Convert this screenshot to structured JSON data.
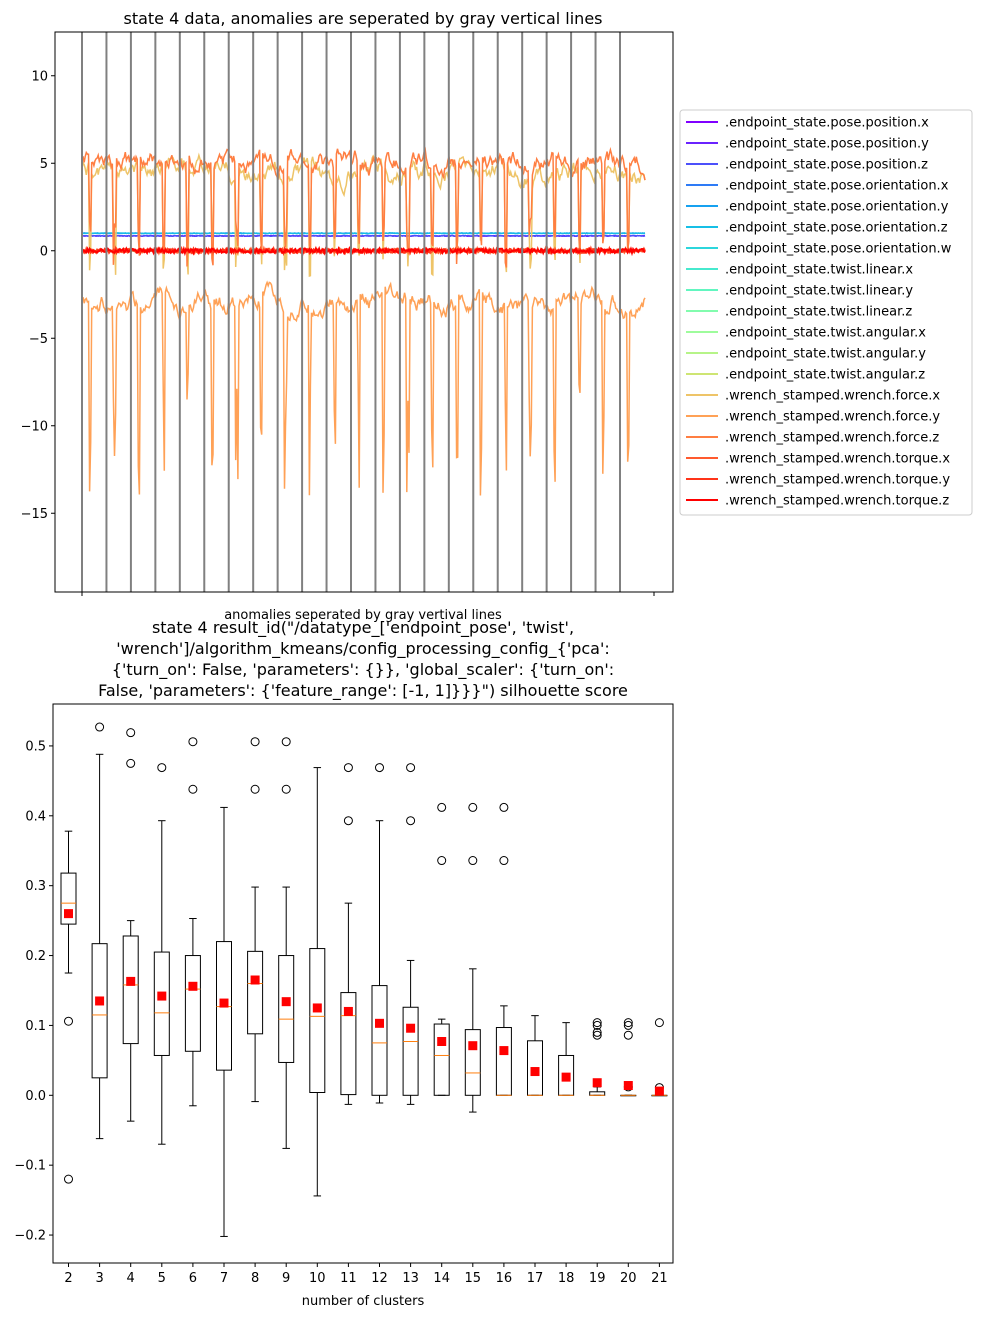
{
  "chart_data": [
    {
      "type": "line",
      "title": "state 4 data, anomalies are seperated by gray vertical lines",
      "xlabel": "anomalies seperated by gray vertival lines",
      "ylabel": "",
      "ylim": [
        -19.5,
        12.5
      ],
      "yticks": [
        10,
        5,
        0,
        -5,
        -10,
        -15
      ],
      "grid": false,
      "legend_placement": "right-outside",
      "anomaly_separator_count": 23,
      "separator_color": "#808080",
      "series": [
        {
          "name": ".endpoint_state.pose.position.x",
          "color": "#8000ff",
          "level": 0.85
        },
        {
          "name": ".endpoint_state.pose.position.y",
          "color": "#6a23fe",
          "level": 0.0
        },
        {
          "name": ".endpoint_state.pose.position.z",
          "color": "#4c50fb",
          "level": 0.85
        },
        {
          "name": ".endpoint_state.pose.orientation.x",
          "color": "#2e7bf6",
          "level": 1.0
        },
        {
          "name": ".endpoint_state.pose.orientation.y",
          "color": "#16a1f0",
          "level": 0.0
        },
        {
          "name": ".endpoint_state.pose.orientation.z",
          "color": "#16bfe6",
          "level": 1.0
        },
        {
          "name": ".endpoint_state.pose.orientation.w",
          "color": "#2cd6dc",
          "level": 0.0
        },
        {
          "name": ".endpoint_state.twist.linear.x",
          "color": "#46e9ce",
          "level": 0.0
        },
        {
          "name": ".endpoint_state.twist.linear.y",
          "color": "#62f6c0",
          "level": 0.0
        },
        {
          "name": ".endpoint_state.twist.linear.z",
          "color": "#82fcae",
          "level": 0.0
        },
        {
          "name": ".endpoint_state.twist.angular.x",
          "color": "#9efc9c",
          "level": 0.0
        },
        {
          "name": ".endpoint_state.twist.angular.y",
          "color": "#b6f488",
          "level": 0.0
        },
        {
          "name": ".endpoint_state.twist.angular.z",
          "color": "#cee573",
          "level": 0.0
        },
        {
          "name": ".wrench_stamped.wrench.force.x",
          "color": "#eec468",
          "level": 4.5
        },
        {
          "name": ".wrench_stamped.wrench.force.y",
          "color": "#ffa156",
          "level": -3.0
        },
        {
          "name": ".wrench_stamped.wrench.force.z",
          "color": "#ff7e41",
          "level": 5.0
        },
        {
          "name": ".wrench_stamped.wrench.torque.x",
          "color": "#ff5a2e",
          "level": 0.0
        },
        {
          "name": ".wrench_stamped.wrench.torque.y",
          "color": "#ff3419",
          "level": 0.0
        },
        {
          "name": ".wrench_stamped.wrench.torque.z",
          "color": "#ff0000",
          "level": 0.0
        }
      ]
    },
    {
      "type": "box",
      "title_lines": [
        "state 4 result_id(\"/datatype_['endpoint_pose', 'twist',",
        "'wrench']/algorithm_kmeans/config_processing_config_{'pca':",
        "{'turn_on': False, 'parameters': {}}, 'global_scaler': {'turn_on':",
        "False, 'parameters': {'feature_range': [-1, 1]}}}\") silhouette score"
      ],
      "xlabel": "number of clusters",
      "ylabel": "",
      "ylim": [
        -0.24,
        0.56
      ],
      "yticks": [
        0.5,
        0.4,
        0.3,
        0.2,
        0.1,
        0.0,
        -0.1,
        -0.2
      ],
      "ytick_labels": [
        "0.5",
        "0.4",
        "0.3",
        "0.2",
        "0.1",
        "0.0",
        "−0.1",
        "−0.2"
      ],
      "grid": false,
      "boxes": [
        {
          "k": "2",
          "q1": 0.245,
          "median": 0.275,
          "q3": 0.318,
          "whisker_low": 0.175,
          "whisker_high": 0.378,
          "mean": 0.26,
          "fliers": [
            0.106,
            -0.12
          ]
        },
        {
          "k": "3",
          "q1": 0.025,
          "median": 0.115,
          "q3": 0.217,
          "whisker_low": -0.062,
          "whisker_high": 0.488,
          "mean": 0.135,
          "fliers": [
            0.527
          ]
        },
        {
          "k": "4",
          "q1": 0.074,
          "median": 0.158,
          "q3": 0.228,
          "whisker_low": -0.037,
          "whisker_high": 0.25,
          "mean": 0.163,
          "fliers": [
            0.519,
            0.475
          ]
        },
        {
          "k": "5",
          "q1": 0.057,
          "median": 0.118,
          "q3": 0.205,
          "whisker_low": -0.07,
          "whisker_high": 0.393,
          "mean": 0.142,
          "fliers": [
            0.469
          ]
        },
        {
          "k": "6",
          "q1": 0.063,
          "median": 0.152,
          "q3": 0.2,
          "whisker_low": -0.015,
          "whisker_high": 0.253,
          "mean": 0.156,
          "fliers": [
            0.506,
            0.438
          ]
        },
        {
          "k": "7",
          "q1": 0.036,
          "median": 0.127,
          "q3": 0.22,
          "whisker_low": -0.202,
          "whisker_high": 0.412,
          "mean": 0.132,
          "fliers": []
        },
        {
          "k": "8",
          "q1": 0.088,
          "median": 0.16,
          "q3": 0.206,
          "whisker_low": -0.009,
          "whisker_high": 0.298,
          "mean": 0.165,
          "fliers": [
            0.506,
            0.438
          ]
        },
        {
          "k": "9",
          "q1": 0.047,
          "median": 0.109,
          "q3": 0.2,
          "whisker_low": -0.076,
          "whisker_high": 0.298,
          "mean": 0.134,
          "fliers": [
            0.506,
            0.438
          ]
        },
        {
          "k": "10",
          "q1": 0.004,
          "median": 0.113,
          "q3": 0.21,
          "whisker_low": -0.144,
          "whisker_high": 0.469,
          "mean": 0.125,
          "fliers": []
        },
        {
          "k": "11",
          "q1": 0.001,
          "median": 0.114,
          "q3": 0.147,
          "whisker_low": -0.013,
          "whisker_high": 0.275,
          "mean": 0.12,
          "fliers": [
            0.469,
            0.393
          ]
        },
        {
          "k": "12",
          "q1": 0.0,
          "median": 0.075,
          "q3": 0.157,
          "whisker_low": -0.011,
          "whisker_high": 0.393,
          "mean": 0.103,
          "fliers": [
            0.469
          ]
        },
        {
          "k": "13",
          "q1": 0.0,
          "median": 0.077,
          "q3": 0.126,
          "whisker_low": -0.013,
          "whisker_high": 0.193,
          "mean": 0.096,
          "fliers": [
            0.469,
            0.393
          ]
        },
        {
          "k": "14",
          "q1": 0.0,
          "median": 0.057,
          "q3": 0.102,
          "whisker_low": 0.0,
          "whisker_high": 0.109,
          "mean": 0.077,
          "fliers": [
            0.412,
            0.336
          ]
        },
        {
          "k": "15",
          "q1": 0.0,
          "median": 0.032,
          "q3": 0.094,
          "whisker_low": -0.024,
          "whisker_high": 0.181,
          "mean": 0.071,
          "fliers": [
            0.412,
            0.336
          ]
        },
        {
          "k": "16",
          "q1": 0.0,
          "median": 0.0,
          "q3": 0.097,
          "whisker_low": 0.0,
          "whisker_high": 0.128,
          "mean": 0.064,
          "fliers": [
            0.412,
            0.336
          ]
        },
        {
          "k": "17",
          "q1": 0.0,
          "median": 0.0,
          "q3": 0.078,
          "whisker_low": 0.0,
          "whisker_high": 0.114,
          "mean": 0.034,
          "fliers": []
        },
        {
          "k": "18",
          "q1": 0.0,
          "median": 0.0,
          "q3": 0.057,
          "whisker_low": 0.0,
          "whisker_high": 0.104,
          "mean": 0.026,
          "fliers": []
        },
        {
          "k": "19",
          "q1": 0.0,
          "median": 0.0,
          "q3": 0.005,
          "whisker_low": 0.0,
          "whisker_high": 0.012,
          "mean": 0.018,
          "fliers": [
            0.104,
            0.1,
            0.09,
            0.086
          ]
        },
        {
          "k": "20",
          "q1": 0.0,
          "median": 0.0,
          "q3": 0.0,
          "whisker_low": 0.0,
          "whisker_high": 0.0,
          "mean": 0.014,
          "fliers": [
            0.104,
            0.1,
            0.086,
            0.012
          ]
        },
        {
          "k": "21",
          "q1": 0.0,
          "median": 0.0,
          "q3": 0.0,
          "whisker_low": 0.0,
          "whisker_high": 0.0,
          "mean": 0.006,
          "fliers": [
            0.104,
            0.011
          ]
        }
      ],
      "colors": {
        "box": "#000000",
        "median": "#ff7f0e",
        "mean": "#ff0000"
      }
    }
  ]
}
